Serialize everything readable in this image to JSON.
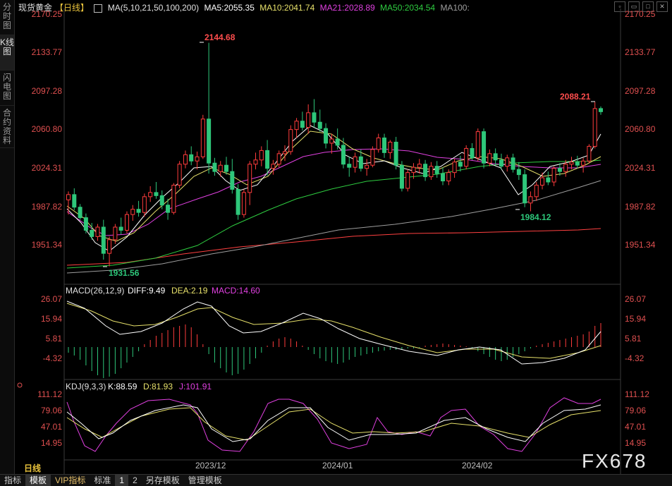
{
  "sidebar": [
    {
      "label": "分时图"
    },
    {
      "label": "K线图"
    },
    {
      "label": "闪电图"
    },
    {
      "label": "合约资料"
    }
  ],
  "header": {
    "title": "现货黄金",
    "period": "【日线】",
    "ma_params": "MA(5,10,21,50,100,200)",
    "ma5": "MA5:2055.35",
    "ma10": "MA10:2041.74",
    "ma21": "MA21:2028.89",
    "ma50": "MA50:2034.54",
    "ma100": "MA100:"
  },
  "colors": {
    "up": "#ff3c3c",
    "down": "#2ec77a",
    "ma5": "#ffffff",
    "ma10": "#e6e06a",
    "ma21": "#e040e0",
    "ma50": "#2ecc40",
    "ma100": "#9e9e9e",
    "ma200": "#ff4040",
    "diff": "#ffffff",
    "dea": "#e6e06a",
    "macd": "#e040e0"
  },
  "price_axis": {
    "left": [
      "2170.25",
      "2133.77",
      "2097.28",
      "2060.80",
      "2024.31",
      "1987.82",
      "1951.34"
    ],
    "right": [
      "2170.25",
      "2133.77",
      "2097.28",
      "2060.80",
      "2024.31",
      "1987.82",
      "1951.34"
    ]
  },
  "annotations": {
    "high": "2144.68",
    "recent_high": "2088.21",
    "low": "1931.56",
    "recent_low": "1984.12"
  },
  "macd": {
    "label": "MACD(26,12,9)",
    "diff": "DIFF:9.49",
    "dea": "DEA:2.19",
    "macd": "MACD:14.60",
    "axis": [
      "26.07",
      "15.94",
      "5.81",
      "-4.32"
    ]
  },
  "kdj": {
    "label": "KDJ(9,3,3)",
    "k": "K:88.59",
    "d": "D:81.93",
    "j": "J:101.91",
    "axis": [
      "111.12",
      "79.06",
      "47.01",
      "14.95"
    ]
  },
  "x_axis": [
    "2023/12",
    "2024/01",
    "2024/02"
  ],
  "period_label": "日线",
  "bottom_tabs": [
    {
      "label": "指标"
    },
    {
      "label": "模板"
    },
    {
      "label": "VIP指标"
    },
    {
      "label": "标准"
    },
    {
      "label": "1"
    },
    {
      "label": "2"
    },
    {
      "label": "另存模板"
    },
    {
      "label": "管理模板"
    }
  ],
  "watermark": "FX678",
  "chart_data": {
    "type": "candlestick",
    "ylim": [
      1930,
      2172
    ],
    "candles": [
      [
        1995,
        2003,
        1981,
        2000
      ],
      [
        2000,
        2006,
        1985,
        1988
      ],
      [
        1988,
        1991,
        1976,
        1978
      ],
      [
        1978,
        1982,
        1963,
        1966
      ],
      [
        1966,
        1973,
        1957,
        1960
      ],
      [
        1960,
        1972,
        1956,
        1969
      ],
      [
        1969,
        1976,
        1938,
        1944
      ],
      [
        1944,
        1960,
        1931.56,
        1957
      ],
      [
        1957,
        1972,
        1953,
        1969
      ],
      [
        1969,
        1978,
        1962,
        1966
      ],
      [
        1966,
        1984,
        1963,
        1981
      ],
      [
        1981,
        1990,
        1975,
        1986
      ],
      [
        1986,
        1994,
        1979,
        1983
      ],
      [
        1983,
        2001,
        1979,
        1998
      ],
      [
        1998,
        2008,
        1993,
        2002
      ],
      [
        2002,
        2012,
        1996,
        1999
      ],
      [
        1999,
        2004,
        1986,
        1990
      ],
      [
        1990,
        1996,
        1976,
        1983
      ],
      [
        1983,
        2011,
        1981,
        2009
      ],
      [
        2009,
        2032,
        2006,
        2029
      ],
      [
        2029,
        2042,
        2025,
        2038
      ],
      [
        2038,
        2046,
        2028,
        2032
      ],
      [
        2032,
        2041,
        2024,
        2036
      ],
      [
        2036,
        2076,
        2034,
        2072
      ],
      [
        2072,
        2144.68,
        2020,
        2030
      ],
      [
        2030,
        2035,
        2018,
        2022
      ],
      [
        2022,
        2032,
        2017,
        2028
      ],
      [
        2028,
        2036,
        2019,
        2022
      ],
      [
        2022,
        2034,
        2001,
        2005
      ],
      [
        2005,
        2010,
        1976,
        1981
      ],
      [
        1981,
        2005,
        1978,
        2002
      ],
      [
        2002,
        2032,
        1990,
        2029
      ],
      [
        2029,
        2040,
        2024,
        2033
      ],
      [
        2033,
        2046,
        2027,
        2042
      ],
      [
        2042,
        2052,
        2018,
        2025
      ],
      [
        2025,
        2033,
        2019,
        2029
      ],
      [
        2029,
        2042,
        2026,
        2039
      ],
      [
        2039,
        2047,
        2032,
        2041
      ],
      [
        2041,
        2066,
        2038,
        2062
      ],
      [
        2062,
        2073,
        2054,
        2070
      ],
      [
        2070,
        2079,
        2061,
        2064
      ],
      [
        2064,
        2086,
        2058,
        2078
      ],
      [
        2078,
        2091,
        2064,
        2069
      ],
      [
        2069,
        2081,
        2060,
        2063
      ],
      [
        2063,
        2068,
        2044,
        2049
      ],
      [
        2049,
        2058,
        2039,
        2053
      ],
      [
        2053,
        2063,
        2043,
        2047
      ],
      [
        2047,
        2054,
        2025,
        2029
      ],
      [
        2029,
        2036,
        2017,
        2026
      ],
      [
        2026,
        2040,
        2021,
        2036
      ],
      [
        2036,
        2043,
        2022,
        2025
      ],
      [
        2025,
        2034,
        2018,
        2028
      ],
      [
        2028,
        2046,
        2026,
        2043
      ],
      [
        2043,
        2058,
        2040,
        2054
      ],
      [
        2054,
        2058,
        2035,
        2040
      ],
      [
        2040,
        2052,
        2034,
        2050
      ],
      [
        2050,
        2055,
        2024,
        2028
      ],
      [
        2028,
        2032,
        2003,
        2006
      ],
      [
        2006,
        2024,
        2003,
        2021
      ],
      [
        2021,
        2030,
        2015,
        2026
      ],
      [
        2026,
        2034,
        2020,
        2029
      ],
      [
        2029,
        2033,
        2013,
        2017
      ],
      [
        2017,
        2031,
        2014,
        2027
      ],
      [
        2027,
        2032,
        2016,
        2020
      ],
      [
        2020,
        2026,
        2009,
        2013
      ],
      [
        2013,
        2024,
        2009,
        2021
      ],
      [
        2021,
        2034,
        2016,
        2031
      ],
      [
        2031,
        2037,
        2022,
        2027
      ],
      [
        2027,
        2047,
        2024,
        2044
      ],
      [
        2044,
        2049,
        2033,
        2035
      ],
      [
        2035,
        2063,
        2032,
        2060
      ],
      [
        2060,
        2063,
        2025,
        2030
      ],
      [
        2030,
        2043,
        2027,
        2039
      ],
      [
        2039,
        2044,
        2028,
        2033
      ],
      [
        2033,
        2039,
        2024,
        2027
      ],
      [
        2027,
        2038,
        2022,
        2035
      ],
      [
        2035,
        2039,
        2021,
        2024
      ],
      [
        2024,
        2031,
        2014,
        2019
      ],
      [
        2019,
        2024,
        1988,
        1992
      ],
      [
        1992,
        2003,
        1984.12,
        1998
      ],
      [
        1998,
        2012,
        1994,
        2009
      ],
      [
        2009,
        2021,
        2005,
        2016
      ],
      [
        2016,
        2022,
        2009,
        2012
      ],
      [
        2012,
        2027,
        2008,
        2025
      ],
      [
        2025,
        2030,
        2018,
        2022
      ],
      [
        2022,
        2033,
        2017,
        2029
      ],
      [
        2029,
        2036,
        2024,
        2031
      ],
      [
        2031,
        2037,
        2025,
        2028
      ],
      [
        2028,
        2035,
        2021,
        2032
      ],
      [
        2032,
        2048,
        2030,
        2046
      ],
      [
        2046,
        2088.21,
        2044,
        2082
      ],
      [
        2082,
        2084,
        2076,
        2079
      ]
    ]
  }
}
